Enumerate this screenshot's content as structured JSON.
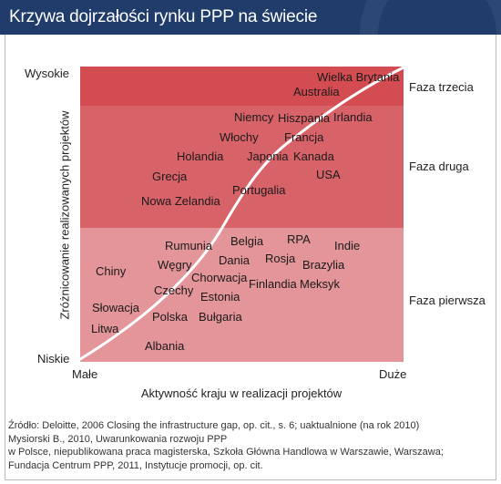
{
  "title": "Krzywa dojrzałości rynku PPP na świecie",
  "y_axis": {
    "label": "Zróżnicowanie realizowanych projektów",
    "high": "Wysokie",
    "low": "Niskie"
  },
  "x_axis": {
    "label": "Aktywność kraju w realizacji projektów",
    "low": "Małe",
    "high": "Duże"
  },
  "phases": {
    "third": "Faza trzecia",
    "second": "Faza druga",
    "first": "Faza pierwsza"
  },
  "countries": {
    "phase3": [
      "Wielka Brytania",
      "Australia"
    ],
    "phase2": [
      "Niemcy",
      "Hiszpania",
      "Irlandia",
      "Włochy",
      "Francja",
      "Holandia",
      "Japonia",
      "Kanada",
      "Grecja",
      "USA",
      "Portugalia",
      "Nowa Zelandia"
    ],
    "phase1": [
      "RPA",
      "Rumunia",
      "Belgia",
      "Indie",
      "Węgry",
      "Rosja",
      "Dania",
      "Brazylia",
      "Chiny",
      "Chorwacja",
      "Finlandia",
      "Meksyk",
      "Czechy",
      "Estonia",
      "Słowacja",
      "Polska",
      "Bułgaria",
      "Litwa",
      "Albania"
    ]
  },
  "source_lines": [
    "Źródło: Deloitte, 2006 Closing the infrastructure gap, op. cit., s. 6; uaktualnione (na rok 2010)",
    "Mysiorski B., 2010, Uwarunkowania rozwoju PPP",
    "w Polsce, niepublikowana praca magisterska, Szkoła Główna Handlowa w Warszawie, Warszawa;",
    "Fundacja Centrum PPP, 2011, Instytucje promocji, op. cit."
  ],
  "colors": {
    "header": "#1f3c6b",
    "phase3": "#d34c52",
    "phase2": "#d76369",
    "phase1": "#e4959a",
    "curve": "#ffffff"
  }
}
